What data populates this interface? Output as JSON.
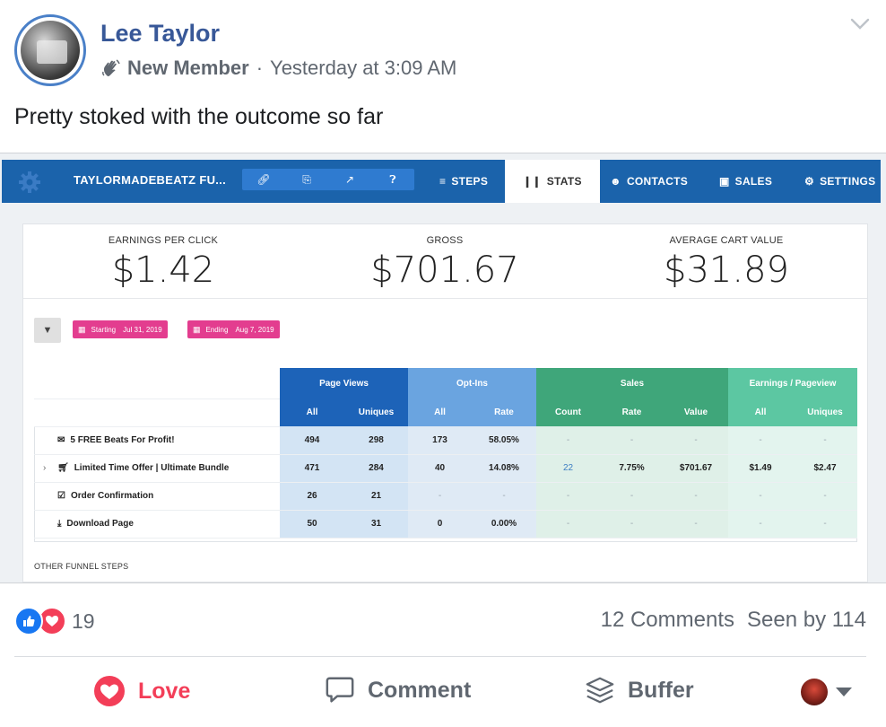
{
  "post": {
    "author": "Lee Taylor",
    "badge": "New Member",
    "separator": "·",
    "timestamp": "Yesterday at 3:09 AM",
    "text": "Pretty stoked with the outcome so far"
  },
  "app": {
    "funnel_name": "TAYLORMADEBEATZ FU...",
    "nav": {
      "steps": "STEPS",
      "stats": "STATS",
      "contacts": "CONTACTS",
      "sales": "SALES",
      "settings": "SETTINGS"
    },
    "kpis": {
      "epc_label": "EARNINGS PER CLICK",
      "epc_value": "$1.42",
      "gross_label": "GROSS",
      "gross_value": "$701.67",
      "acv_label": "AVERAGE CART VALUE",
      "acv_value": "$31.89"
    },
    "filters": {
      "starting_label": "Starting",
      "starting_value": "Jul 31, 2019",
      "ending_label": "Ending",
      "ending_value": "Aug 7, 2019"
    },
    "table": {
      "groups": {
        "page_views": "Page Views",
        "opt_ins": "Opt-Ins",
        "sales": "Sales",
        "earnings": "Earnings / Pageview"
      },
      "cols": {
        "pv_all": "All",
        "pv_uniques": "Uniques",
        "oi_all": "All",
        "oi_rate": "Rate",
        "sa_count": "Count",
        "sa_rate": "Rate",
        "sa_value": "Value",
        "ep_all": "All",
        "ep_uniques": "Uniques"
      },
      "rows": [
        {
          "name": "5 FREE Beats For Profit!",
          "pv_all": "494",
          "pv_uniques": "298",
          "oi_all": "173",
          "oi_rate": "58.05%",
          "sa_count": "-",
          "sa_rate": "-",
          "sa_value": "-",
          "ep_all": "-",
          "ep_uniques": "-"
        },
        {
          "name": "Limited Time Offer | Ultimate Bundle",
          "caret": "›",
          "pv_all": "471",
          "pv_uniques": "284",
          "oi_all": "40",
          "oi_rate": "14.08%",
          "sa_count": "22",
          "sa_rate": "7.75%",
          "sa_value": "$701.67",
          "ep_all": "$1.49",
          "ep_uniques": "$2.47"
        },
        {
          "name": "Order Confirmation",
          "pv_all": "26",
          "pv_uniques": "21",
          "oi_all": "-",
          "oi_rate": "-",
          "sa_count": "-",
          "sa_rate": "-",
          "sa_value": "-",
          "ep_all": "-",
          "ep_uniques": "-"
        },
        {
          "name": "Download Page",
          "pv_all": "50",
          "pv_uniques": "31",
          "oi_all": "0",
          "oi_rate": "0.00%",
          "sa_count": "-",
          "sa_rate": "-",
          "sa_value": "-",
          "ep_all": "-",
          "ep_uniques": "-"
        }
      ]
    },
    "other_steps": "OTHER FUNNEL STEPS"
  },
  "footer": {
    "reaction_count": "19",
    "comments": "12 Comments",
    "seen_by": "Seen by 114",
    "love_label": "Love",
    "comment_label": "Comment",
    "buffer_label": "Buffer"
  },
  "colors": {
    "app_bar": "#1b63ab",
    "author": "#385898",
    "love": "#f33e58",
    "pill": "#e33d8f"
  }
}
